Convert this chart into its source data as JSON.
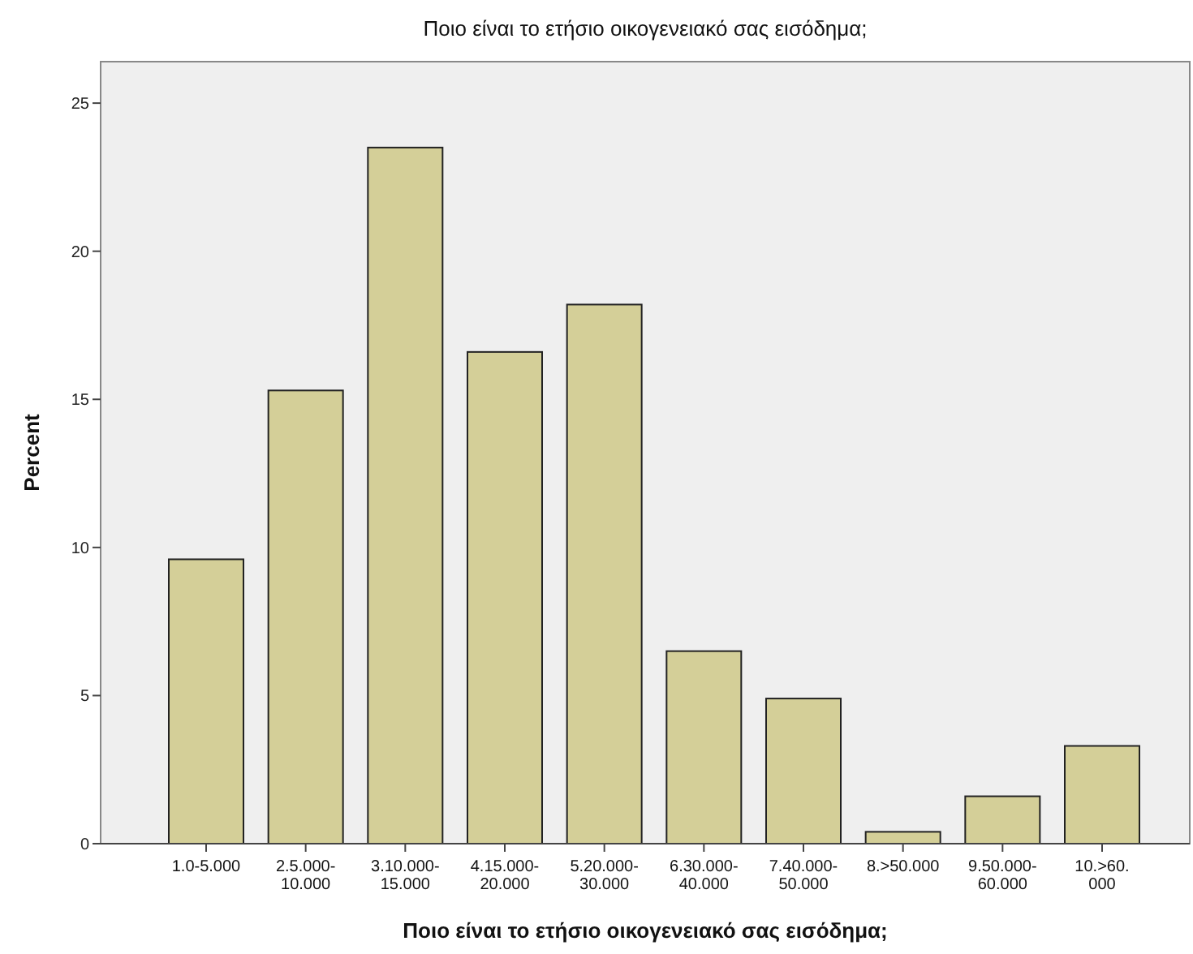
{
  "chart_data": {
    "type": "bar",
    "title": "Ποιο είναι το ετήσιο οικογενειακό σας εισόδημα;",
    "xlabel": "Ποιο είναι το ετήσιο οικογενειακό σας εισόδημα;",
    "ylabel": "Percent",
    "categories": [
      "1.0-5.000",
      "2.5.000-10.000",
      "3.10.000-15.000",
      "4.15.000-20.000",
      "5.20.000-30.000",
      "6.30.000-40.000",
      "7.40.000-50.000",
      "8.>50.000",
      "9.50.000-60.000",
      "10.>60.000"
    ],
    "values": [
      9.6,
      15.3,
      23.5,
      16.6,
      18.2,
      6.5,
      4.9,
      0.4,
      1.6,
      3.3
    ],
    "color": "#d4cf98",
    "ylim": [
      0,
      26.4
    ],
    "yticks": [
      0,
      5,
      10,
      15,
      20,
      25
    ],
    "grid": false
  }
}
